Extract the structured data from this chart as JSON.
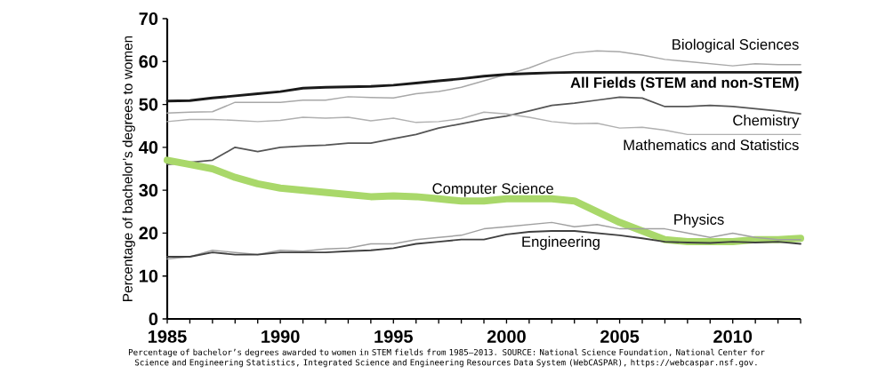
{
  "chart_data": {
    "type": "line",
    "ylabel": "Percentage of bachelor’s degrees to women",
    "x": [
      1985,
      1986,
      1987,
      1988,
      1989,
      1990,
      1991,
      1992,
      1993,
      1994,
      1995,
      1996,
      1997,
      1998,
      1999,
      2000,
      2001,
      2002,
      2003,
      2004,
      2005,
      2006,
      2007,
      2008,
      2009,
      2010,
      2011,
      2012,
      2013
    ],
    "series": [
      {
        "name": "Biological Sciences",
        "color": "#a8a8a8",
        "values": [
          48,
          48.2,
          48.3,
          50.5,
          50.5,
          50.5,
          51,
          51,
          51.8,
          51.6,
          51.5,
          52.5,
          53,
          54,
          55.5,
          57,
          58.5,
          60.5,
          62,
          62.5,
          62.3,
          61.5,
          60.5,
          60,
          59.5,
          59,
          59.5,
          59.3,
          59.3
        ]
      },
      {
        "name": "All Fields (STEM and non-STEM)",
        "color": "#1a1a1a",
        "values": [
          50.8,
          50.9,
          51.5,
          52,
          52.5,
          53,
          53.8,
          54,
          54.1,
          54.2,
          54.5,
          55,
          55.5,
          56,
          56.6,
          57,
          57.2,
          57.4,
          57.5,
          57.5,
          57.5,
          57.5,
          57.5,
          57.5,
          57.5,
          57.5,
          57.5,
          57.5,
          57.5
        ]
      },
      {
        "name": "Chemistry",
        "color": "#555555",
        "values": [
          36,
          null,
          37,
          40,
          39,
          40,
          40.3,
          40.5,
          41,
          41,
          42,
          43,
          44.5,
          45.5,
          46.5,
          47.3,
          48.5,
          49.8,
          50.3,
          51,
          51.7,
          51.5,
          49.5,
          49.5,
          49.8,
          49.5,
          49,
          48.5,
          47.8
        ]
      },
      {
        "name": "Mathematics and Statistics",
        "color": "#b0b0b0",
        "values": [
          46,
          46.5,
          46.5,
          46.3,
          46,
          46.3,
          47,
          46.8,
          47,
          46.2,
          46.8,
          45.8,
          46,
          46.7,
          48.2,
          47.8,
          47,
          46,
          45.5,
          45.6,
          44.5,
          44.7,
          44,
          43,
          43,
          43,
          43,
          43,
          43
        ]
      },
      {
        "name": "Computer Science",
        "color": "#a9d86a",
        "values": [
          37,
          36,
          35,
          33,
          31.5,
          30.5,
          30,
          29.5,
          29,
          28.5,
          28.7,
          28.5,
          28,
          27.5,
          27.5,
          28,
          28,
          28,
          27.5,
          25,
          22.5,
          20.5,
          18.5,
          18,
          18,
          18,
          18.5,
          18.5,
          18.8
        ]
      },
      {
        "name": "Physics",
        "color": "#a0a0a0",
        "values": [
          14,
          14.5,
          16,
          15.5,
          15,
          16,
          15.8,
          16.3,
          16.5,
          17.5,
          17.5,
          18.5,
          19,
          19.5,
          21,
          21.5,
          22,
          22.5,
          21.5,
          22,
          21,
          21,
          21,
          20,
          19,
          20,
          19,
          18.5,
          18.5
        ]
      },
      {
        "name": "Engineering",
        "color": "#404040",
        "values": [
          14.5,
          14.5,
          15.5,
          15,
          15,
          15.5,
          15.5,
          15.5,
          15.8,
          16,
          16.5,
          17.5,
          18,
          18.5,
          18.5,
          19.7,
          20.3,
          20.5,
          20.5,
          20,
          19.5,
          18.8,
          18,
          17.8,
          17.7,
          18,
          17.8,
          18,
          17.5
        ]
      }
    ],
    "xlim": [
      1985,
      2013
    ],
    "ylim": [
      0,
      70
    ],
    "xticks": [
      1985,
      {
        "value": 1986,
        "label": null
      },
      {
        "value": 1987,
        "label": null
      },
      {
        "value": 1988,
        "label": null
      },
      {
        "value": 1989,
        "label": null
      },
      1990,
      {
        "value": 1991,
        "label": null
      },
      {
        "value": 1992,
        "label": null
      },
      {
        "value": 1993,
        "label": null
      },
      {
        "value": 1994,
        "label": null
      },
      1995,
      {
        "value": 1996,
        "label": null
      },
      {
        "value": 1997,
        "label": null
      },
      {
        "value": 1998,
        "label": null
      },
      {
        "value": 1999,
        "label": null
      },
      2000,
      {
        "value": 2001,
        "label": null
      },
      {
        "value": 2002,
        "label": null
      },
      {
        "value": 2003,
        "label": null
      },
      {
        "value": 2004,
        "label": null
      },
      2005,
      {
        "value": 2006,
        "label": null
      },
      {
        "value": 2007,
        "label": null
      },
      {
        "value": 2008,
        "label": null
      },
      {
        "value": 2009,
        "label": null
      },
      2010,
      {
        "value": 2011,
        "label": null
      },
      {
        "value": 2012,
        "label": null
      },
      {
        "value": 2013,
        "label": null
      }
    ],
    "yticks": [
      0,
      10,
      20,
      30,
      40,
      50,
      60,
      70
    ],
    "marker": "none",
    "line_style": "solid",
    "annotations": [
      "Percentage of bachelor’s degrees awarded to women in STEM fields from 1985–2013. SOURCE: National Science Foundation, National Center for Science and Engineering Statistics, Integrated Science and Engineering Resources Data System (WebCASPAR), https://webcaspar.nsf.gov."
    ]
  }
}
